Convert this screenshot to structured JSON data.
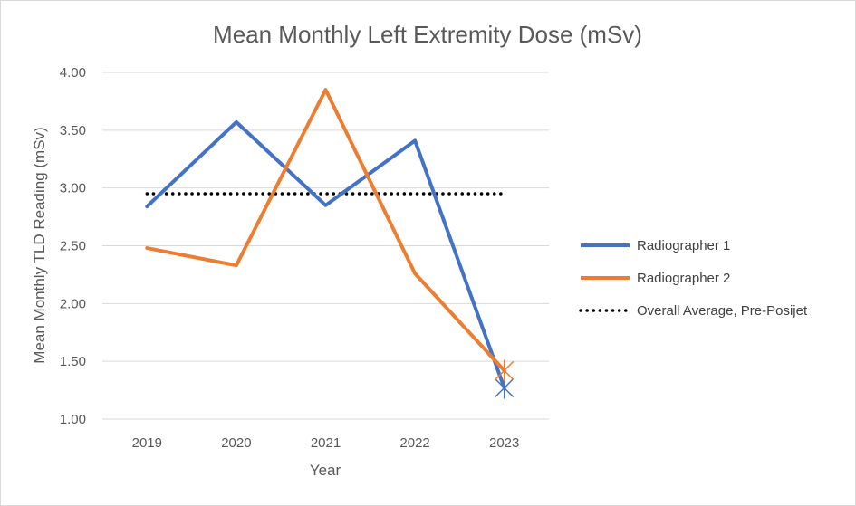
{
  "chart_data": {
    "type": "line",
    "title": "Mean Monthly Left Extremity Dose (mSv)",
    "xlabel": "Year",
    "ylabel": "Mean Monthly  TLD Reading (mSv)",
    "categories": [
      "2019",
      "2020",
      "2021",
      "2022",
      "2023"
    ],
    "ylim": [
      1.0,
      4.0
    ],
    "yticks": [
      "1.00",
      "1.50",
      "2.00",
      "2.50",
      "3.00",
      "3.50",
      "4.00"
    ],
    "grid": true,
    "legend_position": "right",
    "series": [
      {
        "name": "Radiographer 1",
        "color": "#4472c4",
        "style": "solid",
        "values": [
          2.84,
          3.57,
          2.85,
          3.41,
          1.27
        ]
      },
      {
        "name": "Radiographer 2",
        "color": "#ed7d31",
        "style": "solid",
        "values": [
          2.48,
          2.33,
          3.85,
          2.26,
          1.42
        ]
      },
      {
        "name": "Overall Average, Pre-Posijet",
        "color": "#000000",
        "style": "dotted",
        "values": [
          2.95,
          2.95,
          2.95,
          2.95,
          2.95
        ]
      }
    ],
    "end_markers": [
      {
        "series": "Radiographer 1",
        "category": "2023",
        "value": 1.27,
        "marker": "x-star"
      },
      {
        "series": "Radiographer 2",
        "category": "2023",
        "value": 1.42,
        "marker": "x-star"
      }
    ]
  }
}
